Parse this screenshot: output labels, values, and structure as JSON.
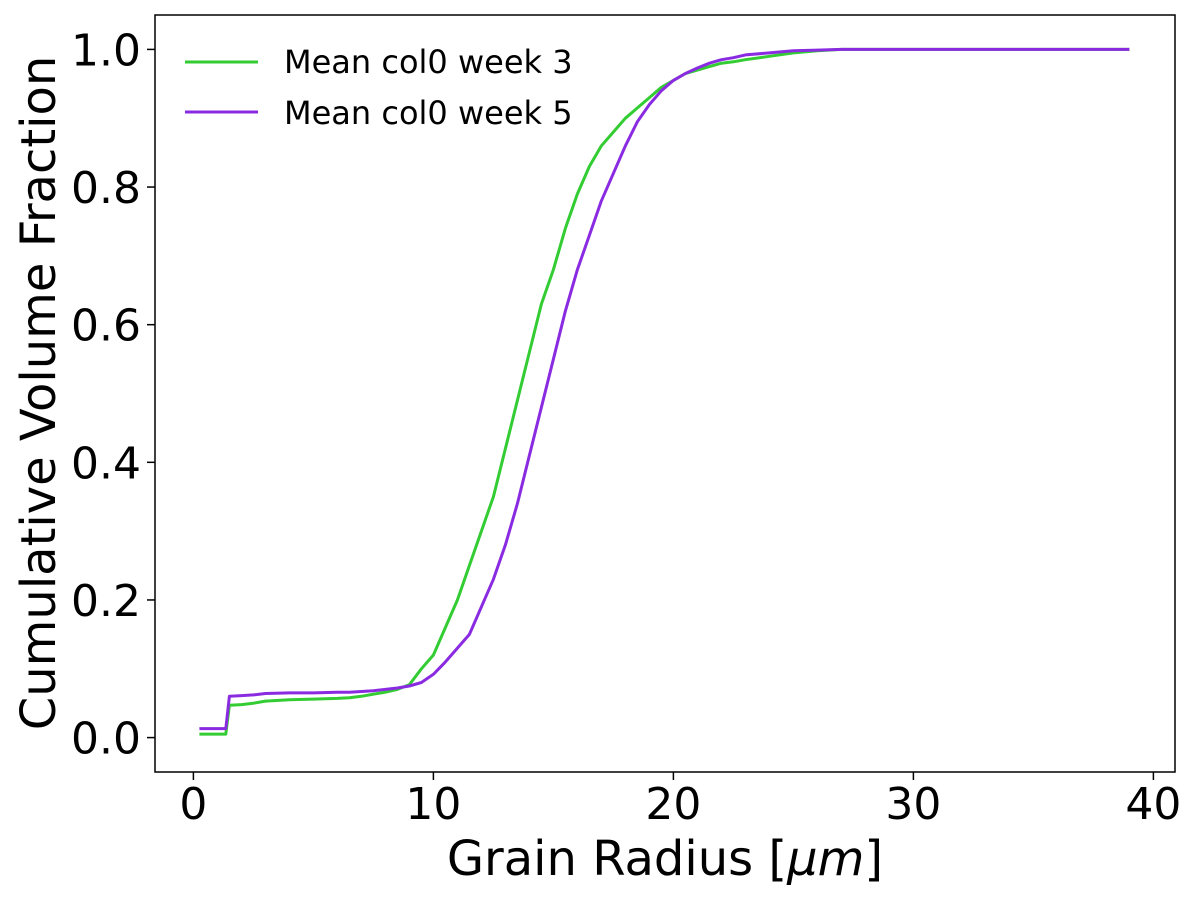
{
  "chart_data": {
    "type": "line",
    "title": "",
    "xlabel": "Grain Radius [",
    "xlabel_unit": "μm",
    "xlabel_suffix": "]",
    "ylabel": "Cumulative Volume Fraction",
    "xlim": [
      -1.6,
      40.9
    ],
    "ylim": [
      -0.05,
      1.05
    ],
    "xticks": [
      0,
      10,
      20,
      30,
      40
    ],
    "xtick_labels": [
      "0",
      "10",
      "20",
      "30",
      "40"
    ],
    "yticks": [
      0.0,
      0.2,
      0.4,
      0.6,
      0.8,
      1.0
    ],
    "ytick_labels": [
      "0.0",
      "0.2",
      "0.4",
      "0.6",
      "0.8",
      "1.0"
    ],
    "grid": false,
    "legend_position": "upper-left",
    "series": [
      {
        "name": "Mean col0 week 3",
        "color": "#33cc33",
        "x": [
          0.25,
          1.35,
          1.5,
          2.0,
          2.5,
          3.0,
          4.0,
          5.0,
          6.0,
          6.5,
          7.0,
          7.5,
          8.0,
          8.5,
          9.0,
          9.5,
          10.0,
          10.5,
          11.0,
          11.5,
          12.0,
          12.5,
          13.0,
          13.5,
          14.0,
          14.5,
          15.0,
          15.5,
          16.0,
          16.5,
          17.0,
          17.5,
          18.0,
          18.5,
          19.0,
          19.5,
          20.0,
          20.5,
          21.0,
          21.5,
          22.0,
          22.5,
          23.0,
          24.0,
          25.0,
          26.0,
          27.0,
          28.0,
          30.0,
          35.0,
          39.0
        ],
        "y": [
          0.005,
          0.005,
          0.047,
          0.048,
          0.05,
          0.053,
          0.055,
          0.056,
          0.057,
          0.058,
          0.06,
          0.063,
          0.066,
          0.07,
          0.077,
          0.1,
          0.12,
          0.16,
          0.2,
          0.25,
          0.3,
          0.35,
          0.42,
          0.49,
          0.56,
          0.63,
          0.68,
          0.74,
          0.79,
          0.83,
          0.86,
          0.88,
          0.9,
          0.915,
          0.93,
          0.945,
          0.955,
          0.965,
          0.97,
          0.975,
          0.98,
          0.982,
          0.985,
          0.99,
          0.995,
          0.998,
          1.0,
          1.0,
          1.0,
          1.0,
          1.0
        ]
      },
      {
        "name": "Mean col0 week 5",
        "color": "#8a2be2",
        "x": [
          0.25,
          1.35,
          1.5,
          2.0,
          2.5,
          3.0,
          4.0,
          5.0,
          6.0,
          6.5,
          7.0,
          7.5,
          8.0,
          8.5,
          9.0,
          9.5,
          10.0,
          10.5,
          11.0,
          11.5,
          12.0,
          12.5,
          13.0,
          13.5,
          14.0,
          14.5,
          15.0,
          15.5,
          16.0,
          16.5,
          17.0,
          17.5,
          18.0,
          18.5,
          19.0,
          19.5,
          20.0,
          20.5,
          21.0,
          21.5,
          22.0,
          22.5,
          23.0,
          24.0,
          25.0,
          26.0,
          27.0,
          28.0,
          30.0,
          35.0,
          39.0
        ],
        "y": [
          0.013,
          0.013,
          0.06,
          0.061,
          0.062,
          0.064,
          0.065,
          0.065,
          0.066,
          0.066,
          0.067,
          0.068,
          0.07,
          0.072,
          0.075,
          0.08,
          0.092,
          0.11,
          0.13,
          0.15,
          0.19,
          0.23,
          0.28,
          0.34,
          0.41,
          0.48,
          0.55,
          0.62,
          0.68,
          0.73,
          0.78,
          0.82,
          0.86,
          0.895,
          0.92,
          0.94,
          0.955,
          0.965,
          0.973,
          0.98,
          0.985,
          0.988,
          0.992,
          0.995,
          0.998,
          0.999,
          1.0,
          1.0,
          1.0,
          1.0,
          1.0
        ]
      }
    ]
  }
}
